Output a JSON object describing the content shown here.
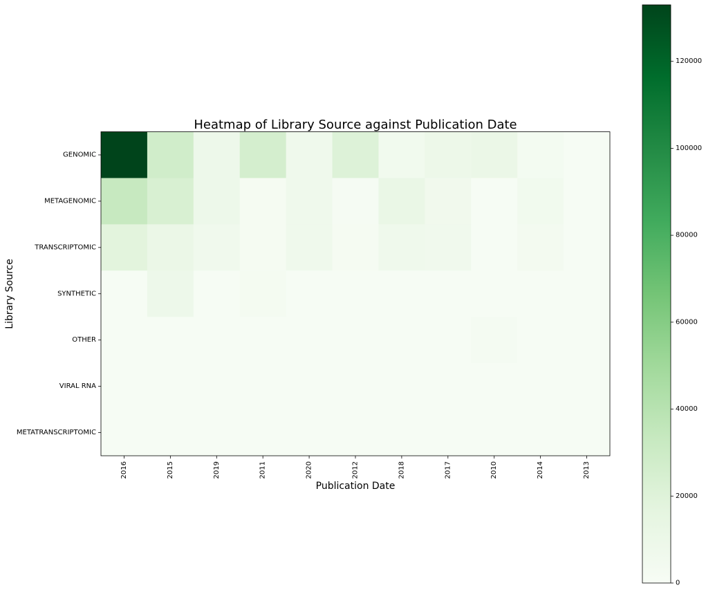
{
  "chart_data": {
    "type": "heatmap",
    "title": "Heatmap of Library Source against Publication Date",
    "xlabel": "Publication Date",
    "ylabel": "Library Source",
    "x_categories": [
      "2016",
      "2015",
      "2019",
      "2011",
      "2020",
      "2012",
      "2018",
      "2017",
      "2010",
      "2014",
      "2013"
    ],
    "y_categories": [
      "GENOMIC",
      "METAGENOMIC",
      "TRANSCRIPTOMIC",
      "SYNTHETIC",
      "OTHER",
      "VIRAL RNA",
      "METATRANSCRIPTOMIC"
    ],
    "values": [
      [
        133000,
        28000,
        9000,
        26000,
        7000,
        21000,
        5500,
        9500,
        11000,
        3500,
        1000
      ],
      [
        33000,
        24000,
        9000,
        2000,
        7000,
        1500,
        12000,
        6000,
        500,
        5500,
        1000
      ],
      [
        18000,
        11000,
        6500,
        2000,
        7000,
        2000,
        7000,
        6500,
        1000,
        4000,
        1000
      ],
      [
        1000,
        9000,
        1000,
        3000,
        1000,
        1000,
        1000,
        1000,
        1000,
        1000,
        1000
      ],
      [
        1000,
        1000,
        1000,
        1000,
        1000,
        1000,
        1000,
        1000,
        2500,
        1000,
        1000
      ],
      [
        1000,
        1000,
        1000,
        1000,
        1000,
        1000,
        1000,
        1000,
        1000,
        1000,
        1000
      ],
      [
        1000,
        1000,
        1000,
        1000,
        1000,
        1000,
        1000,
        1000,
        1000,
        1000,
        1000
      ]
    ],
    "colormap": "Greens",
    "color_range": [
      0,
      133000
    ],
    "colorbar_ticks": [
      0,
      20000,
      40000,
      60000,
      80000,
      100000,
      120000
    ],
    "colorbar_tick_labels": [
      "0",
      "20000",
      "40000",
      "60000",
      "80000",
      "100000",
      "120000"
    ],
    "grid": false,
    "colorbar_position": "right"
  }
}
